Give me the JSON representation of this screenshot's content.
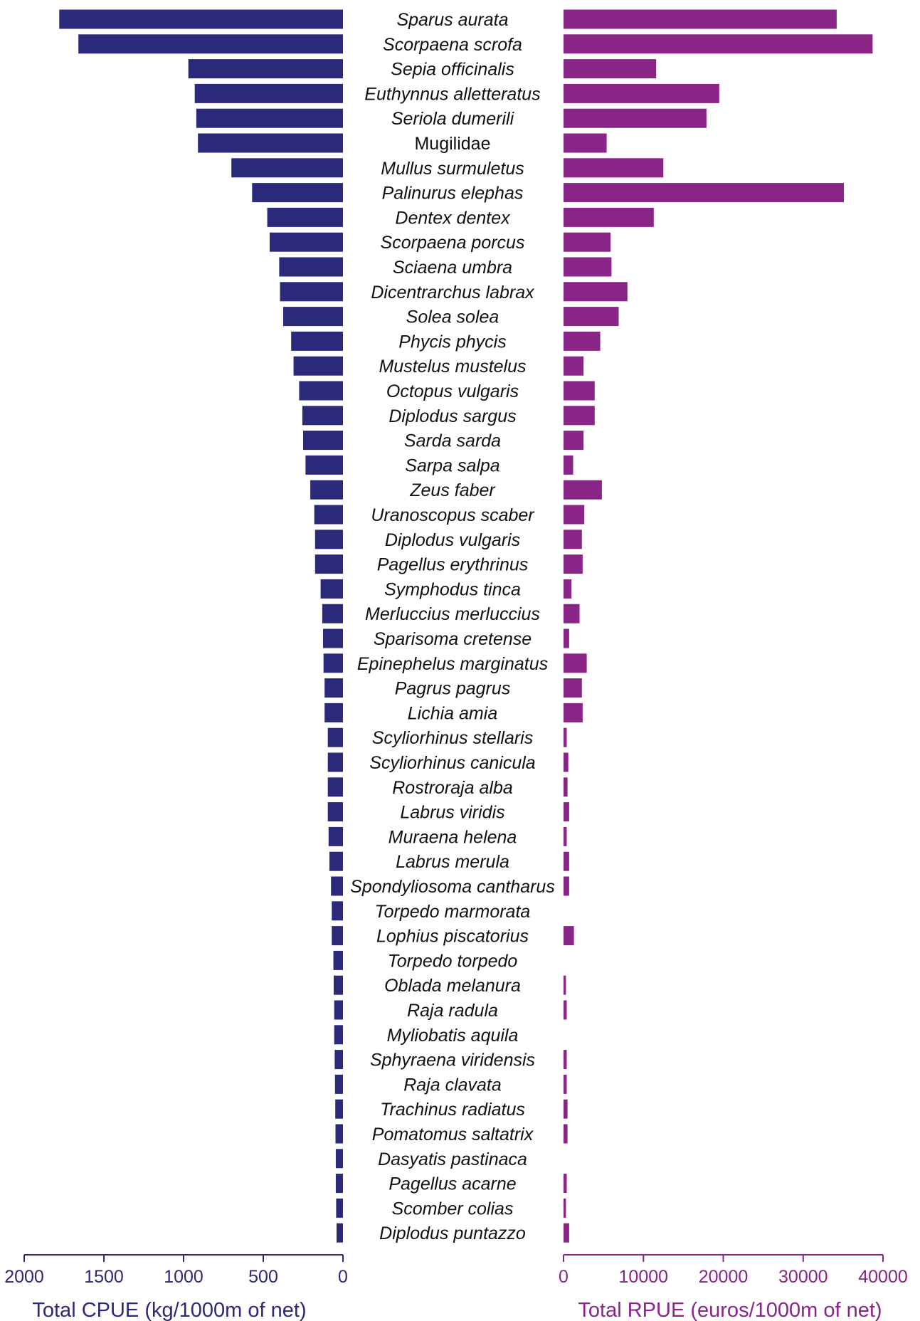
{
  "colors": {
    "cpue": "#2b2a7a",
    "rpue": "#8a2588",
    "text": "#111111"
  },
  "chart_data": [
    {
      "type": "bar",
      "orientation": "horizontal",
      "direction": "right-to-left",
      "xlabel": "Total CPUE (kg/1000m of net)",
      "xlim": [
        0,
        2000
      ],
      "ticks": [
        2000,
        1500,
        1000,
        500,
        0
      ],
      "tick_labels": [
        "2000",
        "1500",
        "1000",
        "500",
        "0"
      ],
      "categories": [
        "Sparus aurata",
        "Scorpaena scrofa",
        "Sepia officinalis",
        "Euthynnus alletteratus",
        "Seriola dumerili",
        "Mugilidae",
        "Mullus surmuletus",
        "Palinurus elephas",
        "Dentex dentex",
        "Scorpaena porcus",
        "Sciaena umbra",
        "Dicentrarchus labrax",
        "Solea solea",
        "Phycis phycis",
        "Mustelus mustelus",
        "Octopus vulgaris",
        "Diplodus sargus",
        "Sarda sarda",
        "Sarpa salpa",
        "Zeus faber",
        "Uranoscopus scaber",
        "Diplodus vulgaris",
        "Pagellus erythrinus",
        "Symphodus tinca",
        "Merluccius merluccius",
        "Sparisoma cretense",
        "Epinephelus marginatus",
        "Pagrus pagrus",
        "Lichia amia",
        "Scyliorhinus stellaris",
        "Scyliorhinus canicula",
        "Rostroraja alba",
        "Labrus viridis",
        "Muraena helena",
        "Labrus merula",
        "Spondyliosoma cantharus",
        "Torpedo marmorata",
        "Lophius piscatorius",
        "Torpedo torpedo",
        "Oblada melanura",
        "Raja radula",
        "Myliobatis aquila",
        "Sphyraena viridensis",
        "Raja clavata",
        "Trachinus radiatus",
        "Pomatomus saltatrix",
        "Dasyatis pastinaca",
        "Pagellus acarne",
        "Scomber colias",
        "Diplodus puntazzo"
      ],
      "values": [
        1780,
        1660,
        970,
        930,
        920,
        910,
        700,
        570,
        475,
        460,
        400,
        395,
        375,
        325,
        310,
        275,
        255,
        250,
        235,
        205,
        180,
        175,
        175,
        140,
        130,
        125,
        122,
        115,
        115,
        95,
        95,
        95,
        95,
        90,
        85,
        75,
        70,
        70,
        60,
        58,
        55,
        55,
        52,
        50,
        48,
        47,
        45,
        45,
        43,
        40
      ]
    },
    {
      "type": "bar",
      "orientation": "horizontal",
      "direction": "left-to-right",
      "xlabel": "Total RPUE (euros/1000m of net)",
      "xlim": [
        0,
        40000
      ],
      "ticks": [
        0,
        10000,
        20000,
        30000,
        40000
      ],
      "tick_labels": [
        "0",
        "10000",
        "20000",
        "30000",
        "40000"
      ],
      "categories": [
        "Sparus aurata",
        "Scorpaena scrofa",
        "Sepia officinalis",
        "Euthynnus alletteratus",
        "Seriola dumerili",
        "Mugilidae",
        "Mullus surmuletus",
        "Palinurus elephas",
        "Dentex dentex",
        "Scorpaena porcus",
        "Sciaena umbra",
        "Dicentrarchus labrax",
        "Solea solea",
        "Phycis phycis",
        "Mustelus mustelus",
        "Octopus vulgaris",
        "Diplodus sargus",
        "Sarda sarda",
        "Sarpa salpa",
        "Zeus faber",
        "Uranoscopus scaber",
        "Diplodus vulgaris",
        "Pagellus erythrinus",
        "Symphodus tinca",
        "Merluccius merluccius",
        "Sparisoma cretense",
        "Epinephelus marginatus",
        "Pagrus pagrus",
        "Lichia amia",
        "Scyliorhinus stellaris",
        "Scyliorhinus canicula",
        "Rostroraja alba",
        "Labrus viridis",
        "Muraena helena",
        "Labrus merula",
        "Spondyliosoma cantharus",
        "Torpedo marmorata",
        "Lophius piscatorius",
        "Torpedo torpedo",
        "Oblada melanura",
        "Raja radula",
        "Myliobatis aquila",
        "Sphyraena viridensis",
        "Raja clavata",
        "Trachinus radiatus",
        "Pomatomus saltatrix",
        "Dasyatis pastinaca",
        "Pagellus acarne",
        "Scomber colias",
        "Diplodus puntazzo"
      ],
      "values": [
        34200,
        38700,
        11600,
        19500,
        17900,
        5400,
        12500,
        35100,
        11300,
        5900,
        6000,
        8000,
        6900,
        4600,
        2500,
        3900,
        3900,
        2500,
        1200,
        4800,
        2600,
        2300,
        2400,
        1000,
        2000,
        700,
        2900,
        2300,
        2400,
        400,
        600,
        500,
        700,
        400,
        700,
        700,
        0,
        1300,
        0,
        300,
        400,
        0,
        400,
        400,
        500,
        500,
        0,
        400,
        300,
        700
      ]
    }
  ]
}
